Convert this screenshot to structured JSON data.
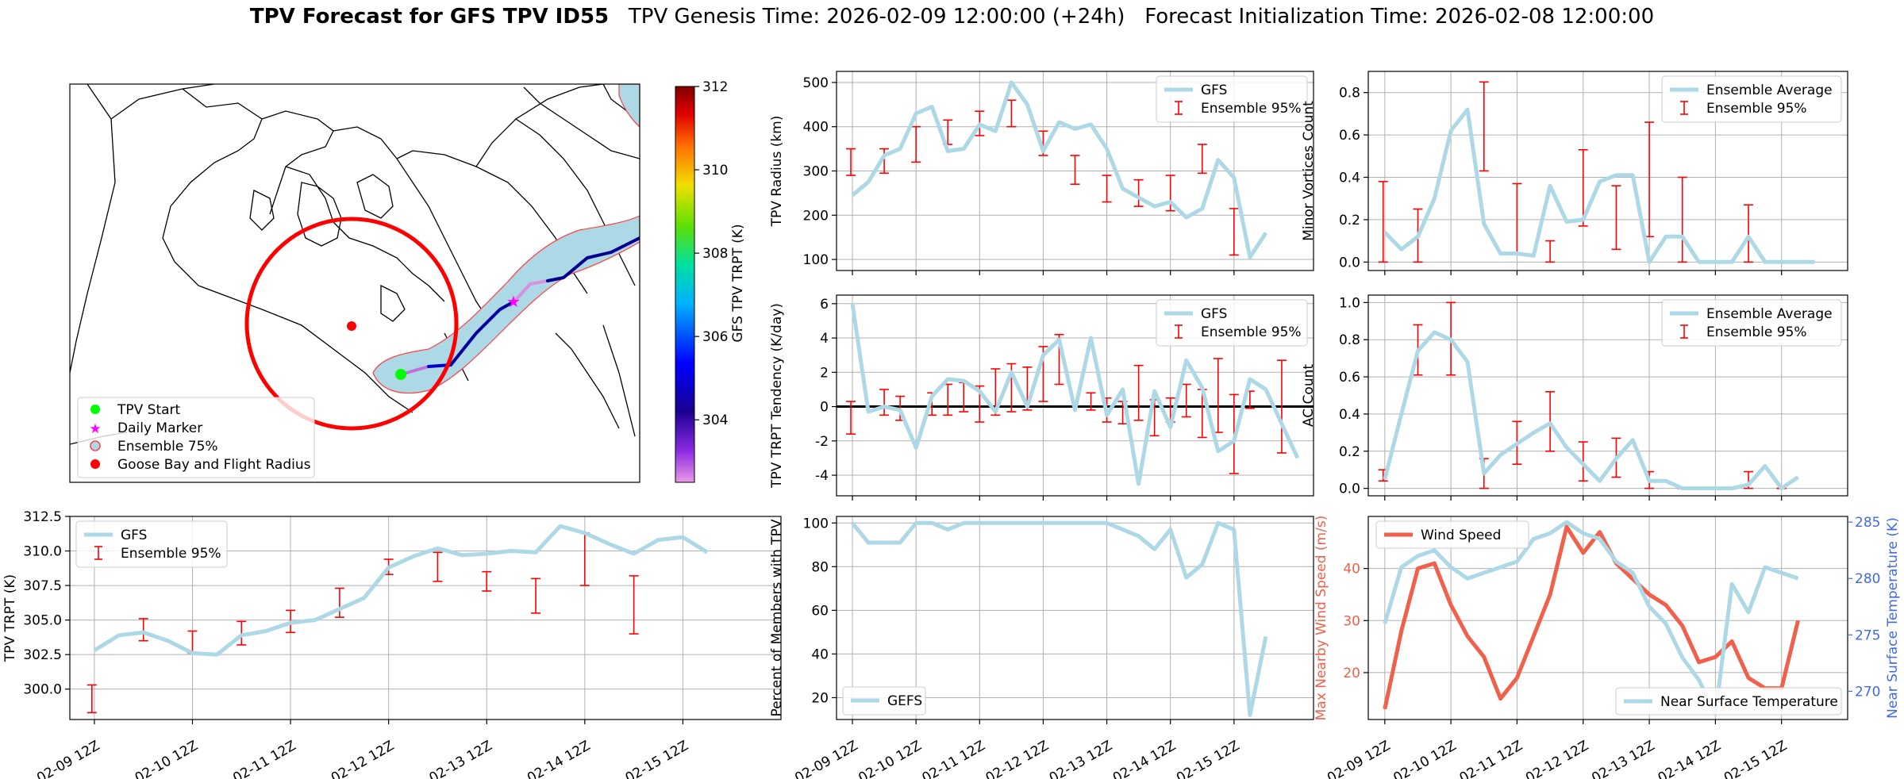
{
  "header": {
    "title_bold": "TPV Forecast for GFS TPV ID55",
    "genesis": "TPV Genesis Time: 2026-02-09 12:00:00 (+24h)",
    "init": "Forecast Initialization Time: 2026-02-08 12:00:00"
  },
  "colors": {
    "gfs_line": "#add8e6",
    "errorbar": "#ff0000",
    "wind": "#f0604a",
    "temp_axis": "#4169e1",
    "wind_axis": "#f0604a",
    "track_fill": "#add8e6",
    "radius_circle": "#ff0000",
    "start_marker": "#00ff00",
    "daily_marker": "#ff00ff",
    "goose_bay": "#ff0000"
  },
  "time_ticks": [
    "02-09 12Z",
    "02-10 12Z",
    "02-11 12Z",
    "02-12 12Z",
    "02-13 12Z",
    "02-14 12Z",
    "02-15 12Z"
  ],
  "map": {
    "legend": [
      "TPV Start",
      "Daily Marker",
      "Ensemble 75%",
      "Goose Bay and Flight Radius"
    ],
    "colorbar": {
      "label": "GFS TPV TRPT (K)",
      "ticks": [
        304,
        306,
        308,
        310,
        312
      ],
      "range": [
        302.5,
        312
      ]
    }
  },
  "chart_data": [
    {
      "id": "radius",
      "type": "line",
      "ylabel": "TPV Radius (km)",
      "ylim": [
        75,
        525
      ],
      "yticks": [
        100,
        200,
        300,
        400,
        500
      ],
      "legend_position": "top-right",
      "legend": [
        "GFS",
        "Ensemble 95%"
      ],
      "series": [
        {
          "name": "GFS",
          "values": [
            245,
            275,
            335,
            350,
            430,
            445,
            345,
            350,
            405,
            390,
            500,
            450,
            345,
            410,
            395,
            405,
            350,
            260,
            240,
            220,
            230,
            195,
            215,
            325,
            285,
            105,
            160
          ]
        }
      ],
      "errorbars": [
        {
          "x": -0.1,
          "low": 290,
          "high": 350
        },
        {
          "x": 2,
          "low": 295,
          "high": 350
        },
        {
          "x": 4,
          "low": 320,
          "high": 400
        },
        {
          "x": 6,
          "low": 360,
          "high": 415
        },
        {
          "x": 8,
          "low": 380,
          "high": 435
        },
        {
          "x": 10,
          "low": 400,
          "high": 460
        },
        {
          "x": 12,
          "low": 335,
          "high": 390
        },
        {
          "x": 14,
          "low": 270,
          "high": 335
        },
        {
          "x": 16,
          "low": 230,
          "high": 290
        },
        {
          "x": 18,
          "low": 220,
          "high": 280
        },
        {
          "x": 20,
          "low": 210,
          "high": 290
        },
        {
          "x": 22,
          "low": 295,
          "high": 360
        },
        {
          "x": 24,
          "low": 110,
          "high": 215
        }
      ]
    },
    {
      "id": "minor",
      "type": "line",
      "ylabel": "Minor Vortices Count",
      "ylim": [
        -0.04,
        0.9
      ],
      "yticks": [
        0.0,
        0.2,
        0.4,
        0.6,
        0.8
      ],
      "legend_position": "top-right",
      "legend": [
        "Ensemble Average",
        "Ensemble 95%"
      ],
      "series": [
        {
          "name": "Ensemble Average",
          "values": [
            0.14,
            0.06,
            0.12,
            0.3,
            0.62,
            0.72,
            0.18,
            0.04,
            0.04,
            0.03,
            0.36,
            0.19,
            0.2,
            0.38,
            0.41,
            0.41,
            0.0,
            0.12,
            0.12,
            0.0,
            0.0,
            0.0,
            0.12,
            0.0,
            0.0,
            0.0,
            0.0
          ]
        }
      ],
      "errorbars": [
        {
          "x": -0.1,
          "low": 0.0,
          "high": 0.38
        },
        {
          "x": 2,
          "low": 0.0,
          "high": 0.25
        },
        {
          "x": 6,
          "low": 0.43,
          "high": 0.85
        },
        {
          "x": 8,
          "low": 0.04,
          "high": 0.37
        },
        {
          "x": 10,
          "low": 0.0,
          "high": 0.1
        },
        {
          "x": 12,
          "low": 0.17,
          "high": 0.53
        },
        {
          "x": 14,
          "low": 0.06,
          "high": 0.36
        },
        {
          "x": 16,
          "low": 0.12,
          "high": 0.66
        },
        {
          "x": 18,
          "low": 0.0,
          "high": 0.4
        },
        {
          "x": 22,
          "low": 0.0,
          "high": 0.27
        }
      ]
    },
    {
      "id": "tendency",
      "type": "line",
      "ylabel": "TPV TRPT Tendency (K/day)",
      "ylim": [
        -5.2,
        6.5
      ],
      "yticks": [
        -4,
        -2,
        0,
        2,
        4,
        6
      ],
      "zero_line": true,
      "legend_position": "top-right",
      "legend": [
        "GFS",
        "Ensemble 95%"
      ],
      "series": [
        {
          "name": "GFS",
          "values": [
            6.0,
            -0.3,
            0.0,
            -0.2,
            -2.4,
            0.6,
            1.6,
            1.5,
            0.9,
            -0.3,
            2.0,
            0.0,
            3.0,
            3.9,
            -0.2,
            4.0,
            -0.5,
            1.0,
            -4.5,
            0.9,
            -1.2,
            2.7,
            1.1,
            -2.6,
            -2.0,
            1.6,
            1.0,
            -1.0,
            -3.0
          ]
        }
      ],
      "errorbars": [
        {
          "x": -0.1,
          "low": -1.6,
          "high": 0.3
        },
        {
          "x": 2,
          "low": -0.5,
          "high": 1.0
        },
        {
          "x": 3,
          "low": -0.8,
          "high": 0.6
        },
        {
          "x": 5,
          "low": -0.5,
          "high": 0.8
        },
        {
          "x": 6,
          "low": -0.5,
          "high": 1.3
        },
        {
          "x": 7,
          "low": -0.3,
          "high": 1.4
        },
        {
          "x": 8,
          "low": -0.9,
          "high": 1.2
        },
        {
          "x": 9,
          "low": -0.5,
          "high": 2.2
        },
        {
          "x": 10,
          "low": -0.3,
          "high": 2.5
        },
        {
          "x": 11,
          "low": -0.2,
          "high": 2.3
        },
        {
          "x": 12,
          "low": 0.3,
          "high": 3.5
        },
        {
          "x": 13,
          "low": 1.3,
          "high": 4.2
        },
        {
          "x": 15,
          "low": -0.2,
          "high": 0.8
        },
        {
          "x": 16,
          "low": -0.9,
          "high": 0.5
        },
        {
          "x": 17,
          "low": -1.0,
          "high": 0.3
        },
        {
          "x": 18,
          "low": -0.8,
          "high": 2.4
        },
        {
          "x": 19,
          "low": -1.7,
          "high": 0.4
        },
        {
          "x": 20,
          "low": -0.9,
          "high": 0.5
        },
        {
          "x": 21,
          "low": -0.6,
          "high": 1.3
        },
        {
          "x": 22,
          "low": -1.8,
          "high": 1.0
        },
        {
          "x": 23,
          "low": -1.5,
          "high": 2.8
        },
        {
          "x": 24,
          "low": -3.9,
          "high": 0.7
        },
        {
          "x": 25,
          "low": -0.1,
          "high": 0.9
        },
        {
          "x": 27,
          "low": -2.7,
          "high": 2.7
        }
      ]
    },
    {
      "id": "ac",
      "type": "line",
      "ylabel": "AC Count",
      "ylim": [
        -0.04,
        1.04
      ],
      "yticks": [
        0.0,
        0.2,
        0.4,
        0.6,
        0.8,
        1.0
      ],
      "legend_position": "top-right",
      "legend": [
        "Ensemble Average",
        "Ensemble 95%"
      ],
      "series": [
        {
          "name": "Ensemble Average",
          "values": [
            0.05,
            0.4,
            0.74,
            0.84,
            0.8,
            0.68,
            0.08,
            0.18,
            0.24,
            0.3,
            0.35,
            0.22,
            0.13,
            0.04,
            0.16,
            0.26,
            0.04,
            0.04,
            0.0,
            0.0,
            0.0,
            0.0,
            0.02,
            0.12,
            0.0,
            0.06
          ]
        }
      ],
      "errorbars": [
        {
          "x": -0.1,
          "low": 0.04,
          "high": 0.1
        },
        {
          "x": 2,
          "low": 0.61,
          "high": 0.88
        },
        {
          "x": 4,
          "low": 0.61,
          "high": 1.0
        },
        {
          "x": 6,
          "low": 0.0,
          "high": 0.16
        },
        {
          "x": 8,
          "low": 0.13,
          "high": 0.36
        },
        {
          "x": 10,
          "low": 0.2,
          "high": 0.52
        },
        {
          "x": 12,
          "low": 0.04,
          "high": 0.25
        },
        {
          "x": 14,
          "low": 0.06,
          "high": 0.27
        },
        {
          "x": 16,
          "low": 0.0,
          "high": 0.09
        },
        {
          "x": 18,
          "low": 0.0,
          "high": 0.0
        },
        {
          "x": 22,
          "low": 0.0,
          "high": 0.09
        },
        {
          "x": 24,
          "low": 0.0,
          "high": 0.0
        }
      ]
    },
    {
      "id": "trpt",
      "type": "line",
      "ylabel": "TPV TRPT (K)",
      "ylim": [
        297.8,
        312.5
      ],
      "yticks": [
        300.0,
        302.5,
        305.0,
        307.5,
        310.0,
        312.5
      ],
      "legend_position": "top-left",
      "legend": [
        "GFS",
        "Ensemble 95%"
      ],
      "series": [
        {
          "name": "GFS",
          "values": [
            302.8,
            303.9,
            304.1,
            303.5,
            302.6,
            302.5,
            303.9,
            304.2,
            304.8,
            305.0,
            305.8,
            306.6,
            308.8,
            309.6,
            310.2,
            309.7,
            309.8,
            310.0,
            309.9,
            311.8,
            311.3,
            310.5,
            309.8,
            310.8,
            311.0,
            309.9
          ]
        }
      ],
      "errorbars": [
        {
          "x": -0.1,
          "low": 298.3,
          "high": 300.3
        },
        {
          "x": 2,
          "low": 303.5,
          "high": 305.1
        },
        {
          "x": 4,
          "low": 302.6,
          "high": 304.2
        },
        {
          "x": 6,
          "low": 303.2,
          "high": 304.9
        },
        {
          "x": 8,
          "low": 304.1,
          "high": 305.7
        },
        {
          "x": 10,
          "low": 305.2,
          "high": 307.3
        },
        {
          "x": 12,
          "low": 308.3,
          "high": 309.4
        },
        {
          "x": 14,
          "low": 307.8,
          "high": 309.9
        },
        {
          "x": 16,
          "low": 307.1,
          "high": 308.5
        },
        {
          "x": 18,
          "low": 305.5,
          "high": 308.0
        },
        {
          "x": 20,
          "low": 307.5,
          "high": 311.3
        },
        {
          "x": 22,
          "low": 304.0,
          "high": 308.2
        }
      ]
    },
    {
      "id": "members",
      "type": "line",
      "ylabel": "Percent of Members with TPV",
      "ylim": [
        10,
        103
      ],
      "yticks": [
        20,
        40,
        60,
        80,
        100
      ],
      "legend_position": "bottom-left",
      "legend": [
        "GEFS"
      ],
      "series": [
        {
          "name": "GEFS",
          "values": [
            100,
            91,
            91,
            91,
            100,
            100,
            97,
            100,
            100,
            100,
            100,
            100,
            100,
            100,
            100,
            100,
            100,
            97,
            94,
            88,
            97,
            75,
            81,
            100,
            97,
            12,
            48
          ]
        }
      ]
    },
    {
      "id": "wind_temp",
      "type": "line",
      "ylabel_left": "Max Nearby Wind Speed (m/s)",
      "ylabel_right": "Near Surface Temperature (K)",
      "ylim_left": [
        11,
        50
      ],
      "yticks_left": [
        20,
        30,
        40
      ],
      "ylim_right": [
        267.5,
        285.5
      ],
      "yticks_right": [
        270,
        275,
        280,
        285
      ],
      "legend_left": "Wind Speed",
      "legend_right": "Near Surface Temperature",
      "series": [
        {
          "name": "Wind Speed",
          "axis": "left",
          "values": [
            13,
            28,
            40,
            41,
            33,
            27,
            23,
            15,
            19,
            27,
            35,
            48,
            43,
            47,
            41,
            38,
            35,
            33,
            29,
            22,
            23,
            26,
            19,
            17,
            17,
            30
          ]
        },
        {
          "name": "Near Surface Temperature",
          "axis": "right",
          "values": [
            276,
            281,
            282,
            282.5,
            281,
            280,
            280.5,
            281,
            281.5,
            283.5,
            284,
            285,
            284,
            283.5,
            281.5,
            280.5,
            277.5,
            276,
            273,
            271,
            268,
            279.5,
            277,
            281,
            280.5,
            280
          ]
        }
      ]
    }
  ]
}
